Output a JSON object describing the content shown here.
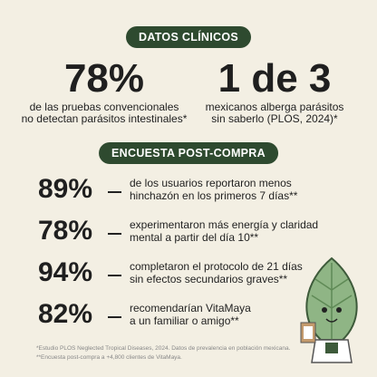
{
  "clinical": {
    "badge": "DATOS CLÍNICOS",
    "stats": [
      {
        "value": "78%",
        "caption": [
          "de las pruebas convencionales",
          "no detectan parásitos intestinales*"
        ]
      },
      {
        "value": "1 de 3",
        "caption": [
          "mexicanos alberga parásitos",
          "sin saberlo (PLOS, 2024)*"
        ]
      }
    ]
  },
  "survey": {
    "badge": "ENCUESTA POST-COMPRA",
    "rows": [
      {
        "value": "89%",
        "text": [
          "de los usuarios reportaron menos",
          "hinchazón en los primeros 7 días**"
        ]
      },
      {
        "value": "78%",
        "text": [
          "experimentaron más energía y claridad",
          "mental a partir del día 10**"
        ]
      },
      {
        "value": "94%",
        "text": [
          "completaron el protocolo de 21 días",
          "sin efectos secundarios graves**"
        ]
      },
      {
        "value": "82%",
        "text": [
          "recomendarían VitaMaya",
          "a un familiar o amigo**"
        ]
      }
    ]
  },
  "footnotes": [
    "*Estudio PLOS Neglected Tropical Diseases, 2024. Datos de prevalencia en población mexicana.",
    "**Encuesta post-compra a +4,800 clientes de VitaMaya."
  ]
}
